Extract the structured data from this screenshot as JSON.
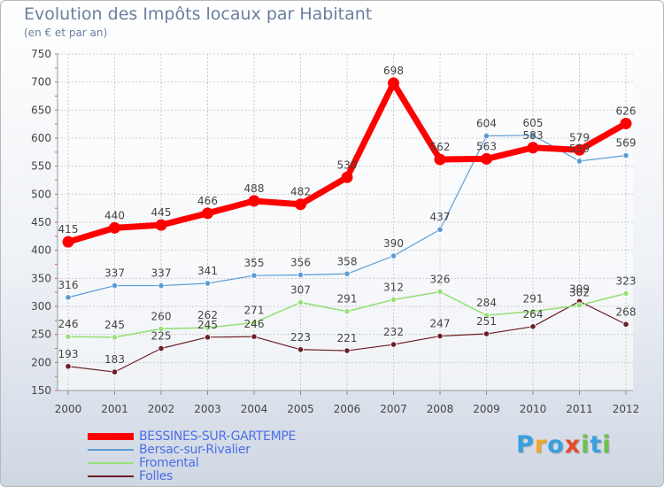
{
  "chart_data": {
    "type": "line",
    "title": "Evolution des Impôts locaux par Habitant",
    "subtitle": "(en € et par an)",
    "categories": [
      "2000",
      "2001",
      "2002",
      "2003",
      "2004",
      "2005",
      "2006",
      "2007",
      "2008",
      "2009",
      "2010",
      "2011",
      "2012"
    ],
    "ylim": [
      150,
      750
    ],
    "yticks": [
      150,
      200,
      250,
      300,
      350,
      400,
      450,
      500,
      550,
      600,
      650,
      700,
      750
    ],
    "grid": true,
    "legend_position": "bottom-left",
    "series": [
      {
        "name": "BESSINES-SUR-GARTEMPE",
        "color": "#ff0000",
        "values": [
          415,
          440,
          445,
          466,
          488,
          482,
          530,
          698,
          562,
          563,
          583,
          579,
          626
        ]
      },
      {
        "name": "Bersac-sur-Rivalier",
        "color": "#5b9bd5",
        "values": [
          316,
          337,
          337,
          341,
          355,
          356,
          358,
          390,
          437,
          604,
          605,
          559,
          569
        ]
      },
      {
        "name": "Fromental",
        "color": "#99e07a",
        "values": [
          246,
          245,
          260,
          262,
          271,
          307,
          291,
          312,
          326,
          284,
          291,
          302,
          323
        ]
      },
      {
        "name": "Folles",
        "color": "#6b1f25",
        "values": [
          193,
          183,
          225,
          245,
          246,
          223,
          221,
          232,
          247,
          251,
          264,
          309,
          268
        ]
      }
    ]
  },
  "logo": {
    "letters": [
      "P",
      "r",
      "o",
      "x",
      "i",
      "t",
      "i"
    ],
    "colors": [
      "#3aa0e0",
      "#f5a623",
      "#3aa0e0",
      "#e84a2e",
      "#6cc24a",
      "#3aa0e0",
      "#6cc24a"
    ]
  }
}
